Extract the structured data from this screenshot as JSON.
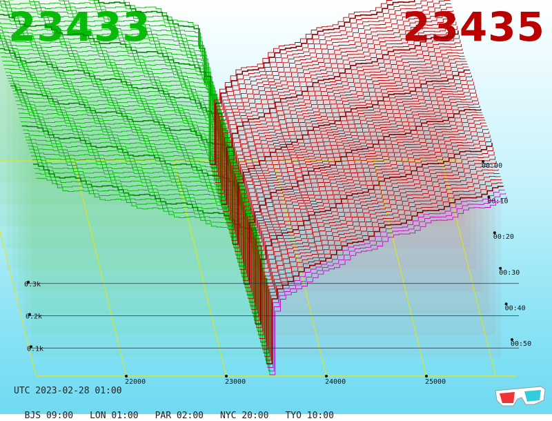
{
  "header": {
    "bid": "23433",
    "ask": "23435",
    "bid_color": "#00bb00",
    "ask_color": "#bb0000"
  },
  "footer": {
    "utc": "UTC 2023-02-28 01:00",
    "timezones": [
      "BJS 09:00",
      "LON 01:00",
      "PAR 02:00",
      "NYC 20:00",
      "TYO 10:00"
    ]
  },
  "icons": {
    "corner": "3d-glasses-icon"
  },
  "chart_data": {
    "type": "area",
    "title": "",
    "x_ticks": [
      22000,
      23000,
      24000,
      25000
    ],
    "x_tick_labels": [
      "22000",
      "23000",
      "24000",
      "25000"
    ],
    "x_range": [
      21100,
      25900
    ],
    "mid_price": 23434,
    "y_ticks": [
      100,
      200,
      300
    ],
    "y_tick_labels": [
      "0.1k",
      "0.2k",
      "0.3k"
    ],
    "time_ticks": [
      "00:00",
      "00:10",
      "00:20",
      "00:30",
      "00:40",
      "00:50"
    ],
    "snapshot_count": 60,
    "series": [
      {
        "side": "bid",
        "color": "#00bb00",
        "depth_profile": [
          [
            21100,
            335
          ],
          [
            21350,
            318
          ],
          [
            21550,
            310
          ],
          [
            21800,
            300
          ],
          [
            22000,
            292
          ],
          [
            22300,
            280
          ],
          [
            22600,
            268
          ],
          [
            22900,
            255
          ],
          [
            23100,
            240
          ],
          [
            23300,
            225
          ],
          [
            23400,
            120
          ],
          [
            23434,
            0
          ]
        ]
      },
      {
        "side": "ask",
        "color": "#bb0000",
        "depth_profile": [
          [
            23434,
            0
          ],
          [
            23460,
            95
          ],
          [
            23550,
            128
          ],
          [
            23700,
            150
          ],
          [
            23900,
            165
          ],
          [
            24000,
            180
          ],
          [
            24300,
            205
          ],
          [
            24600,
            230
          ],
          [
            24900,
            250
          ],
          [
            25200,
            268
          ],
          [
            25500,
            285
          ],
          [
            25800,
            300
          ]
        ]
      }
    ]
  }
}
